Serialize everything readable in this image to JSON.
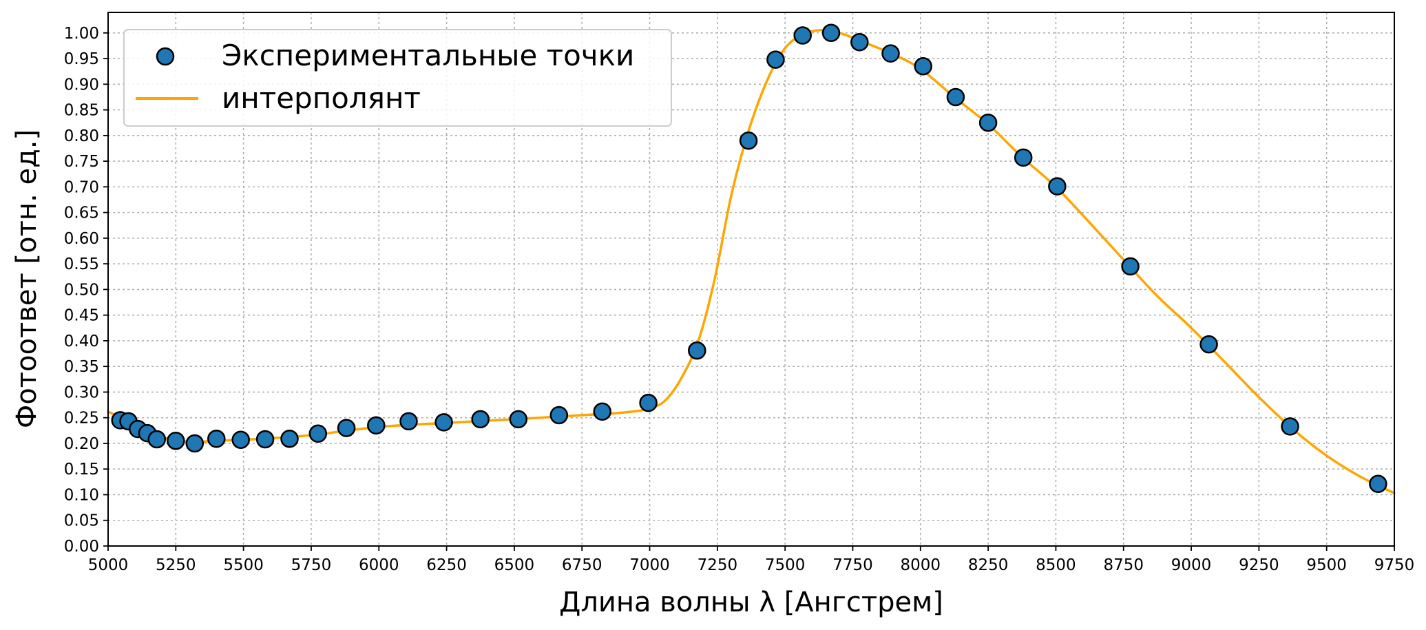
{
  "chart_data": {
    "type": "scatter",
    "title": "",
    "xlabel": "Длина волны λ [Ангстрем]",
    "ylabel": "Фотоответ [отн. ед.]",
    "xlim": [
      5000,
      9750
    ],
    "ylim": [
      0,
      1.04
    ],
    "grid": true,
    "legend_position": "top-left",
    "xticks": [
      "5000",
      "5250",
      "5500",
      "5750",
      "6000",
      "6250",
      "6500",
      "6750",
      "7000",
      "7250",
      "7500",
      "7750",
      "8000",
      "8250",
      "8500",
      "8750",
      "9000",
      "9250",
      "9500",
      "9750"
    ],
    "yticks": [
      "0.00",
      "0.05",
      "0.10",
      "0.15",
      "0.20",
      "0.25",
      "0.30",
      "0.35",
      "0.40",
      "0.45",
      "0.50",
      "0.55",
      "0.60",
      "0.65",
      "0.70",
      "0.75",
      "0.80",
      "0.85",
      "0.90",
      "0.95",
      "1.00"
    ],
    "series": [
      {
        "name": "Экспериментальные точки",
        "kind": "scatter",
        "color": "#1f77b4",
        "edge_color": "#000000",
        "points": [
          [
            5045,
            0.245
          ],
          [
            5075,
            0.243
          ],
          [
            5110,
            0.228
          ],
          [
            5145,
            0.22
          ],
          [
            5180,
            0.208
          ],
          [
            5250,
            0.205
          ],
          [
            5320,
            0.2
          ],
          [
            5400,
            0.209
          ],
          [
            5490,
            0.207
          ],
          [
            5580,
            0.208
          ],
          [
            5670,
            0.209
          ],
          [
            5775,
            0.219
          ],
          [
            5880,
            0.23
          ],
          [
            5990,
            0.235
          ],
          [
            6110,
            0.243
          ],
          [
            6240,
            0.241
          ],
          [
            6375,
            0.247
          ],
          [
            6515,
            0.247
          ],
          [
            6665,
            0.255
          ],
          [
            6825,
            0.262
          ],
          [
            6995,
            0.279
          ],
          [
            7175,
            0.381
          ],
          [
            7365,
            0.79
          ],
          [
            7465,
            0.948
          ],
          [
            7565,
            0.995
          ],
          [
            7670,
            1.0
          ],
          [
            7775,
            0.982
          ],
          [
            7890,
            0.96
          ],
          [
            8010,
            0.935
          ],
          [
            8130,
            0.875
          ],
          [
            8250,
            0.825
          ],
          [
            8380,
            0.757
          ],
          [
            8505,
            0.701
          ],
          [
            8775,
            0.545
          ],
          [
            9065,
            0.393
          ],
          [
            9365,
            0.233
          ],
          [
            9690,
            0.121
          ]
        ]
      },
      {
        "name": "интерполянт",
        "kind": "line",
        "color": "#ffa500",
        "points": [
          [
            5000,
            0.262
          ],
          [
            5100,
            0.236
          ],
          [
            5200,
            0.212
          ],
          [
            5300,
            0.203
          ],
          [
            5400,
            0.205
          ],
          [
            5500,
            0.207
          ],
          [
            5600,
            0.21
          ],
          [
            5750,
            0.216
          ],
          [
            6000,
            0.232
          ],
          [
            6250,
            0.24
          ],
          [
            6500,
            0.247
          ],
          [
            6750,
            0.255
          ],
          [
            6900,
            0.26
          ],
          [
            7000,
            0.268
          ],
          [
            7060,
            0.285
          ],
          [
            7120,
            0.33
          ],
          [
            7180,
            0.4
          ],
          [
            7240,
            0.52
          ],
          [
            7300,
            0.68
          ],
          [
            7360,
            0.8
          ],
          [
            7420,
            0.89
          ],
          [
            7480,
            0.955
          ],
          [
            7540,
            0.99
          ],
          [
            7620,
            1.005
          ],
          [
            7700,
            1.0
          ],
          [
            7800,
            0.98
          ],
          [
            7900,
            0.958
          ],
          [
            8000,
            0.93
          ],
          [
            8125,
            0.875
          ],
          [
            8250,
            0.822
          ],
          [
            8375,
            0.758
          ],
          [
            8500,
            0.7
          ],
          [
            8625,
            0.63
          ],
          [
            8750,
            0.558
          ],
          [
            8875,
            0.487
          ],
          [
            9000,
            0.425
          ],
          [
            9125,
            0.358
          ],
          [
            9250,
            0.29
          ],
          [
            9375,
            0.228
          ],
          [
            9500,
            0.176
          ],
          [
            9625,
            0.135
          ],
          [
            9750,
            0.103
          ]
        ]
      }
    ]
  }
}
